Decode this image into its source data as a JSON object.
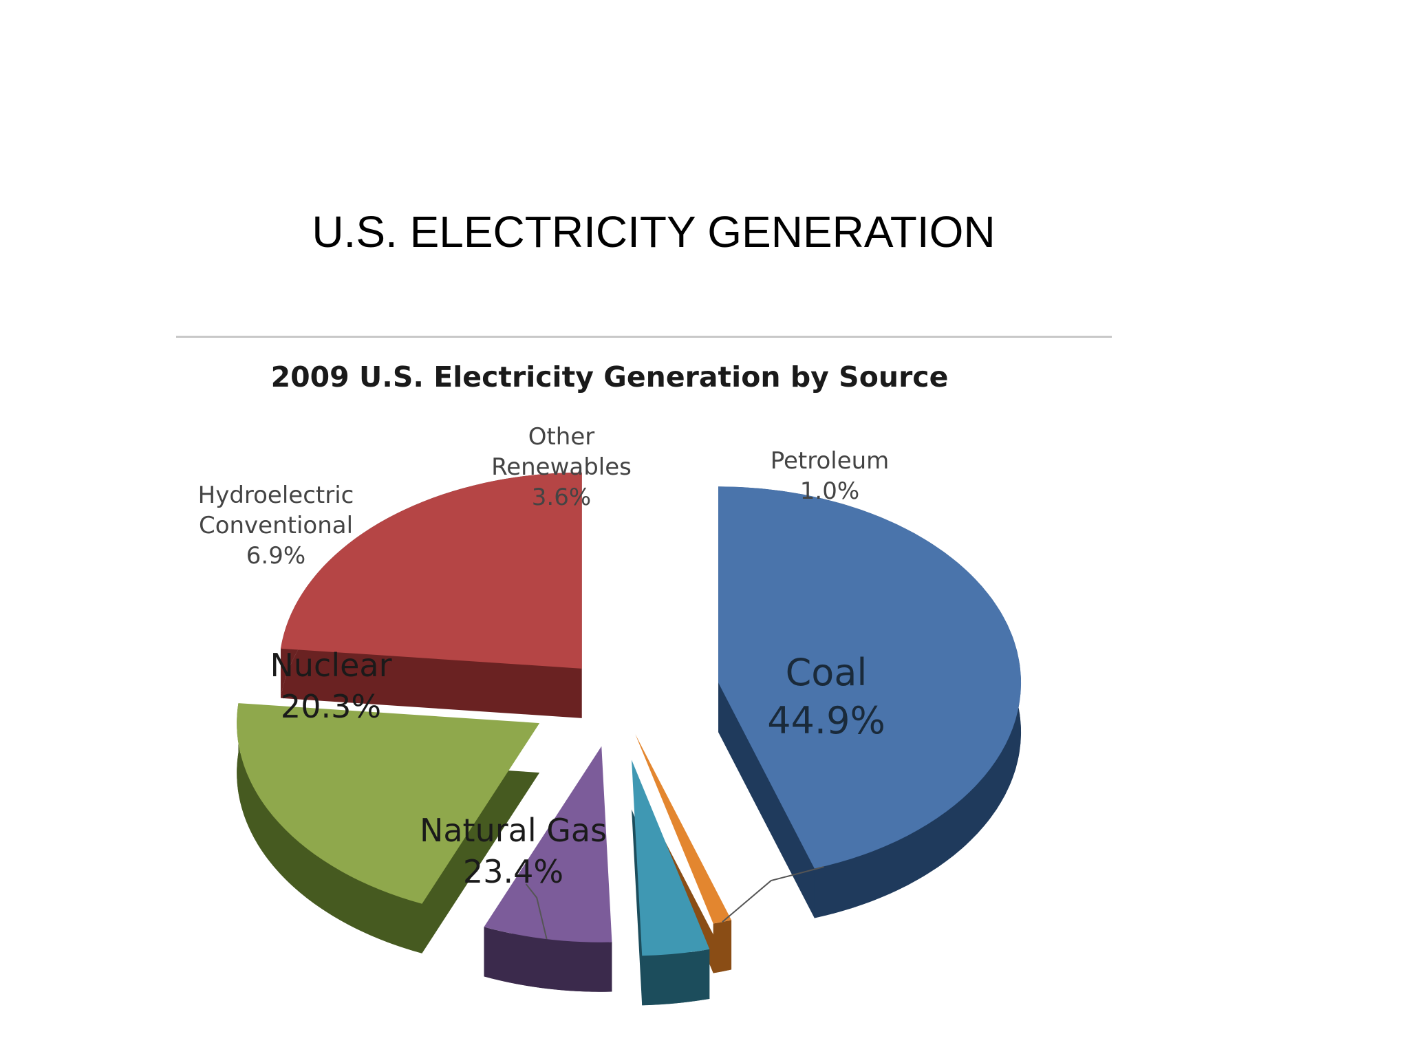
{
  "slide": {
    "title": "U.S. ELECTRICITY GENERATION"
  },
  "chart_data": {
    "type": "pie",
    "title": "2009 U.S. Electricity Generation by Source",
    "style": "3d-exploded",
    "slices": [
      {
        "name": "Coal",
        "value": 44.9,
        "value_label": "44.9%",
        "color": "#4a74ab",
        "side_color": "#1f3a5c"
      },
      {
        "name": "Petroleum",
        "value": 1.0,
        "value_label": "1.0%",
        "color": "#e3862f",
        "side_color": "#8a4d15"
      },
      {
        "name": "Other Renewables",
        "name_lines": [
          "Other",
          "Renewables"
        ],
        "value": 3.6,
        "value_label": "3.6%",
        "color": "#3f98b3",
        "side_color": "#1c4d5c"
      },
      {
        "name": "Hydroelectric Conventional",
        "name_lines": [
          "Hydroelectric",
          "Conventional"
        ],
        "value": 6.9,
        "value_label": "6.9%",
        "color": "#7c5c9a",
        "side_color": "#3b2a4c"
      },
      {
        "name": "Nuclear",
        "value": 20.3,
        "value_label": "20.3%",
        "color": "#8fa84c",
        "side_color": "#465a20"
      },
      {
        "name": "Natural Gas",
        "value": 23.4,
        "value_label": "23.4%",
        "color": "#b54545",
        "side_color": "#6a2222"
      }
    ]
  }
}
